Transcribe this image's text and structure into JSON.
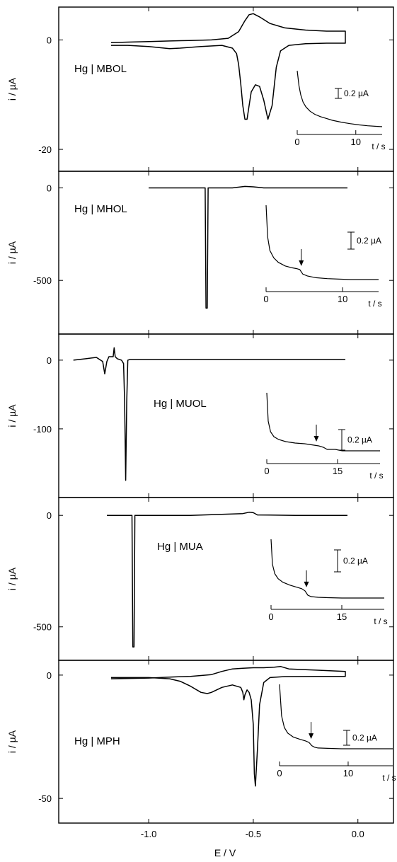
{
  "chart_data": {
    "type": "line",
    "xlabel": "E / V",
    "xlim": [
      -1.43,
      0.17
    ],
    "xticks": [
      -1.0,
      -0.5,
      0.0
    ],
    "xtick_labels": [
      "-1.0",
      "-0.5",
      "0.0"
    ],
    "panels": [
      {
        "label": "Hg | MBOL",
        "ylabel": "i / µA",
        "ylim": [
          -24,
          6
        ],
        "yticks": [
          0,
          -20
        ],
        "ytick_labels": [
          "0",
          "-20"
        ],
        "series": [
          {
            "x": [
              -1.18,
              -1.1,
              -1.0,
              -0.9,
              -0.8,
              -0.7,
              -0.62,
              -0.57,
              -0.54,
              -0.52,
              -0.5,
              -0.47,
              -0.42,
              -0.35,
              -0.25,
              -0.15,
              -0.06,
              -0.06,
              -0.15,
              -0.25,
              -0.33,
              -0.37,
              -0.39,
              -0.41,
              -0.43,
              -0.45,
              -0.47,
              -0.49,
              -0.51,
              -0.52,
              -0.53,
              -0.54,
              -0.55,
              -0.56,
              -0.57,
              -0.58,
              -0.6,
              -0.65,
              -0.75,
              -0.85,
              -0.9,
              -1.0,
              -1.1,
              -1.18
            ],
            "y": [
              -0.5,
              -0.4,
              -0.3,
              -0.2,
              -0.1,
              0.0,
              0.3,
              1.5,
              3.5,
              4.6,
              4.8,
              4.2,
              3.0,
              2.2,
              1.8,
              1.6,
              1.6,
              -0.6,
              -0.6,
              -0.7,
              -1.0,
              -2.0,
              -5.0,
              -12.0,
              -14.5,
              -11.0,
              -8.5,
              -8.2,
              -9.5,
              -12.0,
              -14.5,
              -14.5,
              -12.0,
              -8.0,
              -4.5,
              -2.5,
              -1.5,
              -1.0,
              -1.2,
              -1.5,
              -1.6,
              -1.2,
              -1.0,
              -1.0
            ]
          }
        ],
        "inset": {
          "x": [
            0,
            0.3,
            0.6,
            1,
            1.5,
            2.2,
            3,
            4,
            5,
            6,
            7.5,
            9,
            10.5,
            12,
            13.5,
            14.5
          ],
          "y": [
            0,
            -0.25,
            -0.4,
            -0.52,
            -0.6,
            -0.67,
            -0.72,
            -0.76,
            -0.79,
            -0.82,
            -0.85,
            -0.875,
            -0.895,
            -0.91,
            -0.92,
            -0.925
          ],
          "xticks": [
            0,
            10
          ],
          "xtick_labels": [
            "0",
            "10"
          ],
          "xlabel": "t / s",
          "scale_label": "0.2 µA"
        }
      },
      {
        "label": "Hg | MHOL",
        "ylabel": "i / µA",
        "ylim": [
          -790,
          90
        ],
        "yticks": [
          0,
          -500
        ],
        "ytick_labels": [
          "0",
          "-500"
        ],
        "series": [
          {
            "x": [
              -1.0,
              -0.73,
              -0.726,
              -0.72,
              -0.716,
              -0.6,
              -0.54,
              -0.5,
              -0.45,
              -0.3,
              -0.2,
              -0.1,
              -0.05
            ],
            "y": [
              0,
              0,
              -650,
              -650,
              0,
              0,
              8,
              6,
              0,
              0,
              0,
              0,
              0
            ]
          }
        ],
        "inset": {
          "x": [
            0,
            0.2,
            0.5,
            1,
            1.6,
            2.5,
            3.4,
            4,
            4.4,
            4.8,
            5.4,
            6.5,
            8,
            9.5,
            11,
            12.5,
            14,
            14.7
          ],
          "y": [
            0,
            -0.35,
            -0.5,
            -0.58,
            -0.63,
            -0.67,
            -0.69,
            -0.7,
            -0.71,
            -0.76,
            -0.78,
            -0.8,
            -0.81,
            -0.815,
            -0.82,
            -0.82,
            -0.82,
            -0.82
          ],
          "xticks": [
            0,
            10
          ],
          "xtick_labels": [
            "0",
            "10"
          ],
          "xlabel": "t / s",
          "scale_label": "0.2 µA",
          "arrow_t": 4.6
        }
      },
      {
        "label": "Hg | MUOL",
        "ylabel": "i / µA",
        "ylim": [
          -200,
          38
        ],
        "yticks": [
          0,
          -100
        ],
        "ytick_labels": [
          "0",
          "-100"
        ],
        "series": [
          {
            "x": [
              -1.36,
              -1.3,
              -1.25,
              -1.22,
              -1.21,
              -1.2,
              -1.19,
              -1.17,
              -1.165,
              -1.16,
              -1.15,
              -1.13,
              -1.12,
              -1.115,
              -1.11,
              -1.105,
              -1.1,
              -1.09,
              -1.0,
              -0.8,
              -0.5,
              -0.2,
              -0.06
            ],
            "y": [
              0,
              2,
              4,
              -2,
              -20,
              -2,
              5,
              5,
              18,
              5,
              2,
              0,
              -5,
              -60,
              -175,
              -60,
              0,
              1,
              1,
              1,
              1,
              1,
              1
            ]
          }
        ],
        "inset": {
          "x": [
            0,
            0.3,
            0.8,
            1.5,
            2.5,
            4,
            6,
            8,
            10,
            11,
            12,
            12.8,
            13.5,
            14.5,
            16,
            18,
            20,
            22,
            24
          ],
          "y": [
            0,
            -0.4,
            -0.55,
            -0.62,
            -0.66,
            -0.69,
            -0.71,
            -0.72,
            -0.74,
            -0.75,
            -0.77,
            -0.8,
            -0.8,
            -0.8,
            -0.82,
            -0.82,
            -0.82,
            -0.82,
            -0.82
          ],
          "xticks": [
            0,
            15
          ],
          "xtick_labels": [
            "0",
            "15"
          ],
          "xlabel": "t / s",
          "scale_label": "0.2 µA",
          "arrow_t": 10.5
        }
      },
      {
        "label": "Hg | MUA",
        "ylabel": "i / µA",
        "ylim": [
          -650,
          80
        ],
        "yticks": [
          0,
          -500
        ],
        "ytick_labels": [
          "0",
          "-500"
        ],
        "series": [
          {
            "x": [
              -1.2,
              -1.08,
              -1.076,
              -1.07,
              -1.066,
              -0.8,
              -0.55,
              -0.52,
              -0.5,
              -0.48,
              -0.3,
              -0.1,
              -0.05
            ],
            "y": [
              0,
              0,
              -590,
              -590,
              0,
              0,
              8,
              14,
              12,
              2,
              0,
              0,
              0
            ]
          }
        ],
        "inset": {
          "x": [
            0,
            0.3,
            0.8,
            1.5,
            2.5,
            4,
            5.5,
            6.5,
            7.2,
            7.8,
            8.5,
            10,
            12,
            15,
            18,
            21,
            24
          ],
          "y": [
            0,
            -0.35,
            -0.48,
            -0.55,
            -0.6,
            -0.64,
            -0.67,
            -0.69,
            -0.72,
            -0.78,
            -0.8,
            -0.81,
            -0.815,
            -0.82,
            -0.82,
            -0.82,
            -0.82
          ],
          "xticks": [
            0,
            15
          ],
          "xtick_labels": [
            "0",
            "15"
          ],
          "xlabel": "t / s",
          "scale_label": "0.2 µA",
          "arrow_t": 7.5
        }
      },
      {
        "label": "Hg | MPH",
        "ylabel": "i / µA",
        "ylim": [
          -60,
          6
        ],
        "yticks": [
          0,
          -50
        ],
        "ytick_labels": [
          "0",
          "-50"
        ],
        "series": [
          {
            "x": [
              -1.18,
              -1.0,
              -0.9,
              -0.8,
              -0.7,
              -0.65,
              -0.6,
              -0.55,
              -0.5,
              -0.45,
              -0.4,
              -0.37,
              -0.33,
              -0.2,
              -0.06,
              -0.06,
              -0.2,
              -0.35,
              -0.42,
              -0.45,
              -0.47,
              -0.48,
              -0.49,
              -0.495,
              -0.5,
              -0.51,
              -0.52,
              -0.53,
              -0.54,
              -0.545,
              -0.55,
              -0.555,
              -0.56,
              -0.6,
              -0.65,
              -0.7,
              -0.72,
              -0.75,
              -0.8,
              -0.85,
              -0.9,
              -1.0,
              -1.1,
              -1.18
            ],
            "y": [
              -1.5,
              -1.2,
              -0.8,
              -0.5,
              0.2,
              1.5,
              2.5,
              2.8,
              3.0,
              3.0,
              3.2,
              3.5,
              2.5,
              2.0,
              1.5,
              -0.5,
              -0.5,
              -0.6,
              -1.0,
              -3.0,
              -12.0,
              -30.0,
              -45.0,
              -40.0,
              -20.0,
              -10.0,
              -7.0,
              -6.0,
              -8.0,
              -10.0,
              -7.0,
              -6.0,
              -5.0,
              -4.0,
              -5.0,
              -7.0,
              -7.5,
              -7.0,
              -4.5,
              -2.5,
              -1.5,
              -1.0,
              -1.0,
              -1.0
            ]
          }
        ],
        "inset": {
          "x": [
            0,
            0.3,
            0.7,
            1.2,
            2,
            3,
            3.8,
            4.3,
            4.7,
            5.1,
            5.6,
            7,
            9,
            11,
            13,
            15,
            16.5
          ],
          "y": [
            0,
            -0.4,
            -0.55,
            -0.62,
            -0.67,
            -0.7,
            -0.72,
            -0.74,
            -0.78,
            -0.8,
            -0.81,
            -0.815,
            -0.82,
            -0.82,
            -0.82,
            -0.82,
            -0.82
          ],
          "xticks": [
            0,
            10
          ],
          "xtick_labels": [
            "0",
            "10"
          ],
          "xlabel": "t / s",
          "scale_label": "0.2 µA",
          "arrow_t": 4.6
        }
      }
    ]
  }
}
